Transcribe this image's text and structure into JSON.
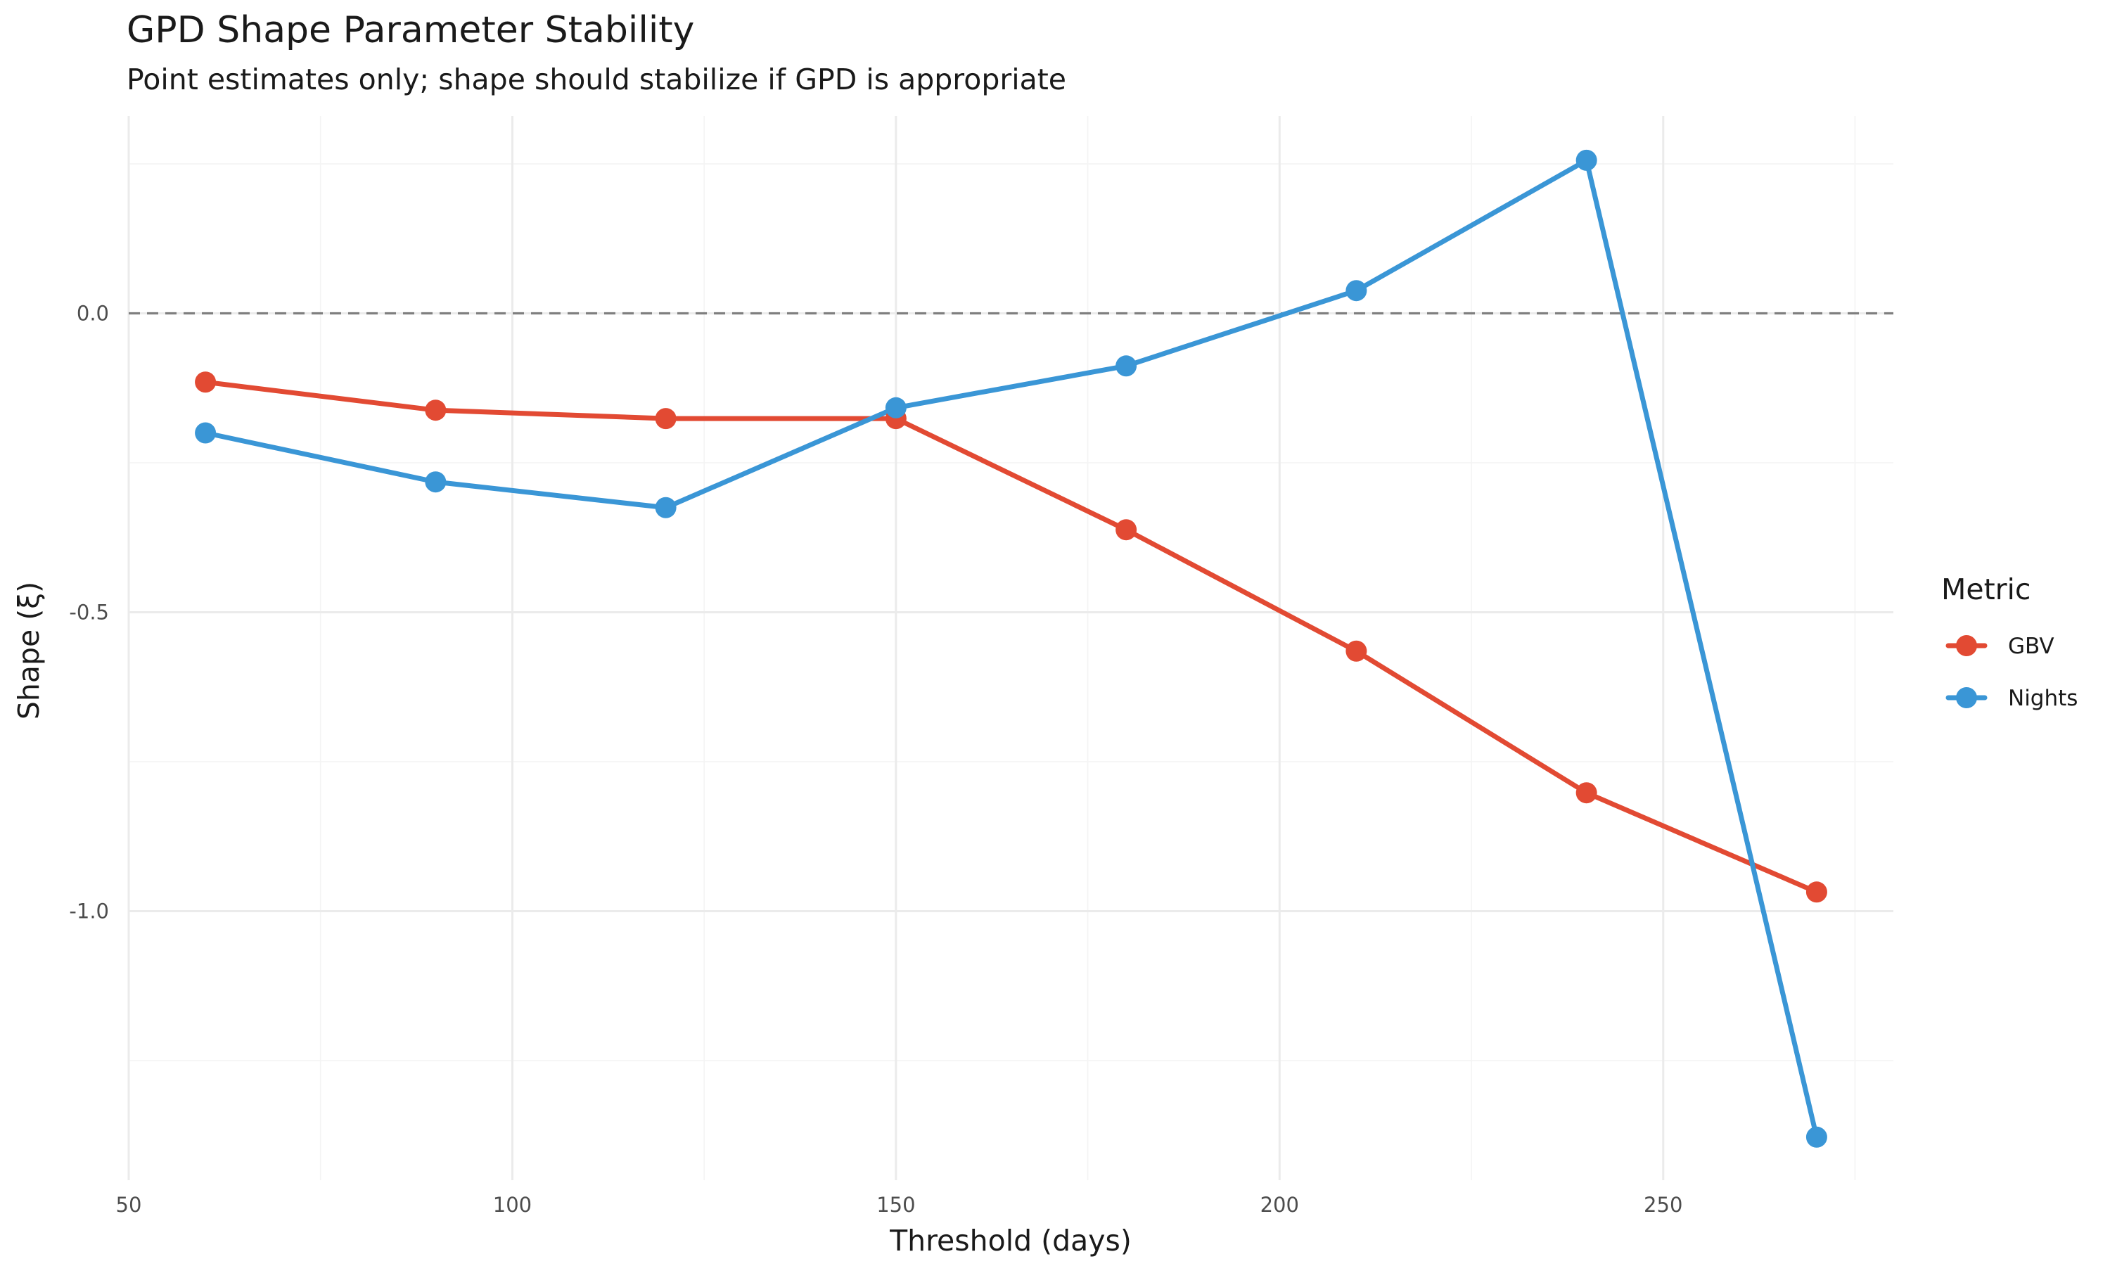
{
  "chart_data": {
    "type": "line",
    "title": "GPD Shape Parameter Stability",
    "subtitle": "Point estimates only; shape should stabilize if GPD is appropriate",
    "xlabel": "Threshold (days)",
    "ylabel": "Shape (ξ)",
    "xlim": [
      50,
      280
    ],
    "ylim": [
      -1.45,
      0.33
    ],
    "x_ticks": [
      50,
      100,
      150,
      200,
      250
    ],
    "x_tick_labels": [
      "50",
      "100",
      "150",
      "200",
      "250"
    ],
    "x_minor_ticks": [
      75,
      125,
      175,
      225,
      275
    ],
    "y_ticks": [
      0.0,
      -0.5,
      -1.0
    ],
    "y_tick_labels": [
      "0.0",
      "-0.5",
      "-1.0"
    ],
    "y_minor_ticks": [
      0.25,
      -0.25,
      -0.75,
      -1.25
    ],
    "reference_line": {
      "y": 0,
      "style": "dashed"
    },
    "grid": true,
    "legend_title": "Metric",
    "legend_position": "right",
    "x": [
      60,
      90,
      120,
      150,
      180,
      210,
      240,
      270
    ],
    "series": [
      {
        "name": "GBV",
        "color": "#E24A33",
        "values": [
          -0.115,
          -0.162,
          -0.176,
          -0.176,
          -0.362,
          -0.565,
          -0.802,
          -0.968
        ]
      },
      {
        "name": "Nights",
        "color": "#3A96D6",
        "values": [
          -0.2,
          -0.282,
          -0.325,
          -0.158,
          -0.088,
          0.038,
          0.256,
          -1.378
        ]
      }
    ]
  }
}
